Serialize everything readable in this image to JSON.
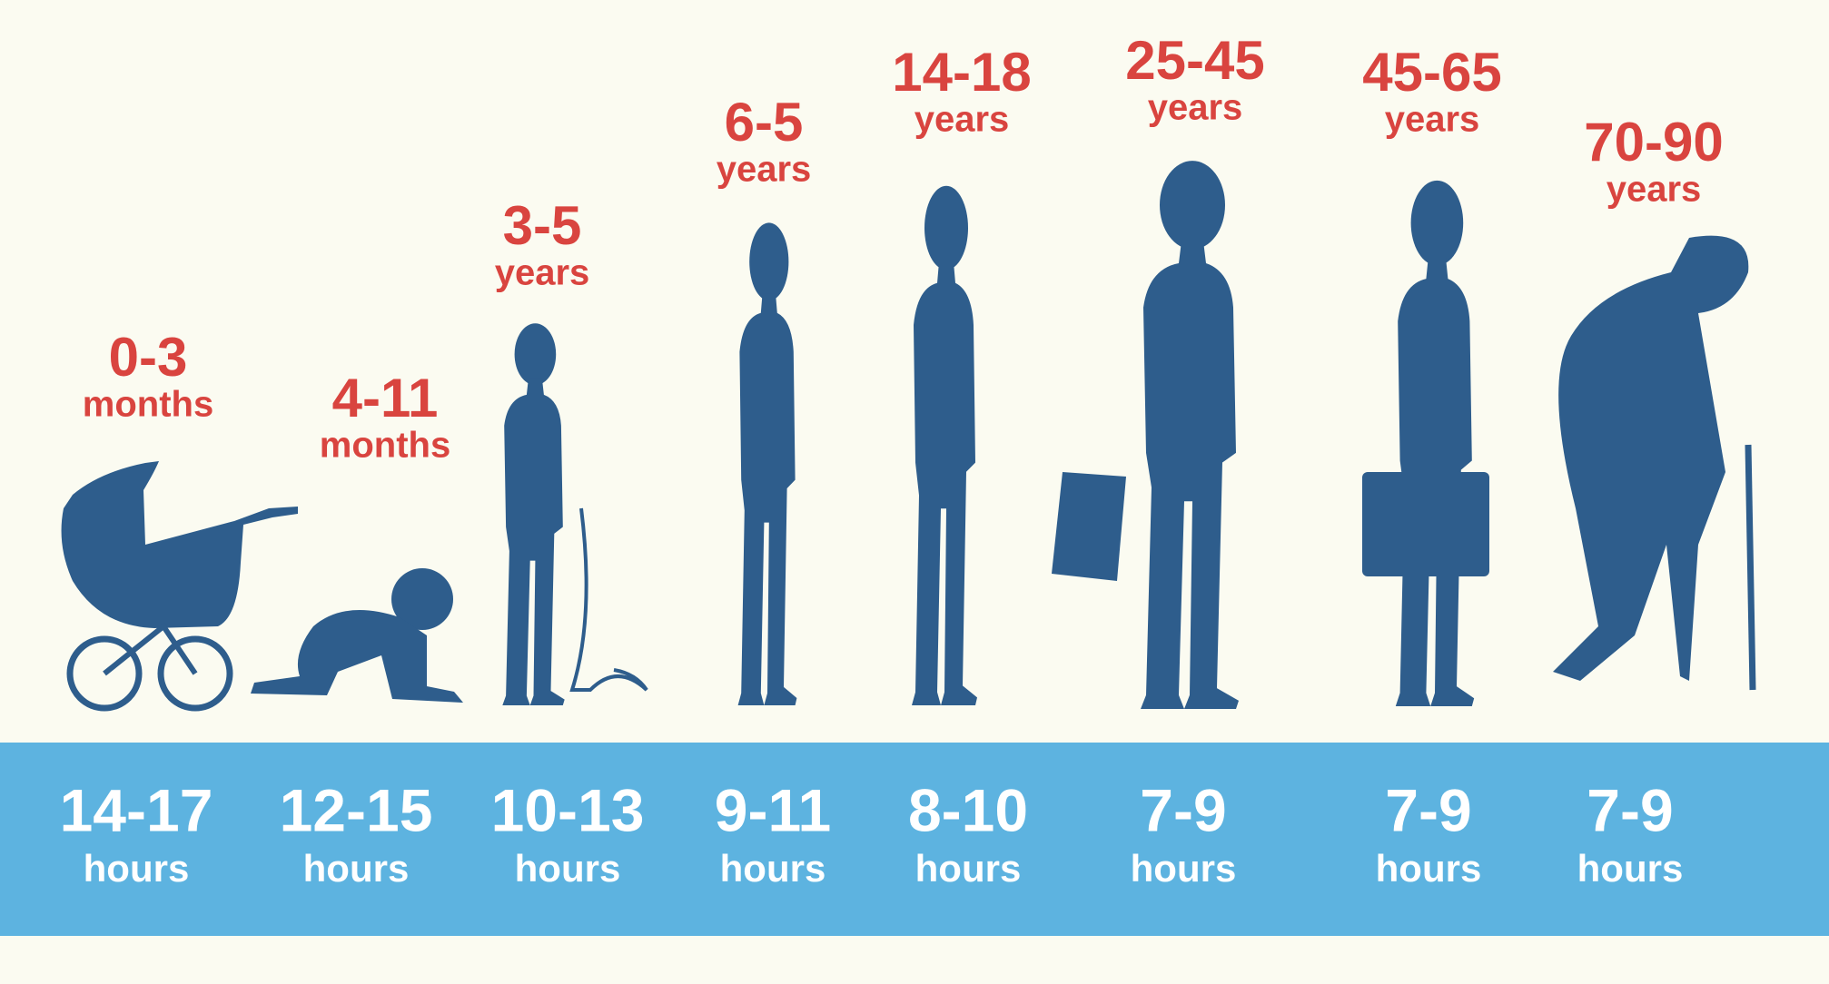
{
  "stages": [
    {
      "age": "0-3",
      "age_unit": "months",
      "sleep": "14-17",
      "sleep_unit": "hours"
    },
    {
      "age": "4-11",
      "age_unit": "months",
      "sleep": "12-15",
      "sleep_unit": "hours"
    },
    {
      "age": "3-5",
      "age_unit": "years",
      "sleep": "10-13",
      "sleep_unit": "hours"
    },
    {
      "age": "6-5",
      "age_unit": "years",
      "sleep": "9-11",
      "sleep_unit": "hours"
    },
    {
      "age": "14-18",
      "age_unit": "years",
      "sleep": "8-10",
      "sleep_unit": "hours"
    },
    {
      "age": "25-45",
      "age_unit": "years",
      "sleep": "7-9",
      "sleep_unit": "hours"
    },
    {
      "age": "45-65",
      "age_unit": "years",
      "sleep": "7-9",
      "sleep_unit": "hours"
    },
    {
      "age": "70-90",
      "age_unit": "years",
      "sleep": "7-9",
      "sleep_unit": "hours"
    }
  ]
}
